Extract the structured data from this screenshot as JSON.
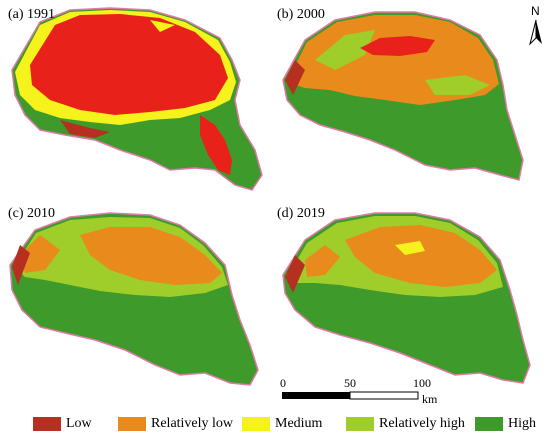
{
  "panels": [
    {
      "id": "a",
      "label": "(a) 1991"
    },
    {
      "id": "b",
      "label": "(b) 2000"
    },
    {
      "id": "c",
      "label": "(c) 2010"
    },
    {
      "id": "d",
      "label": "(d) 2019"
    }
  ],
  "north_arrow": {
    "letter": "N"
  },
  "scale_bar": {
    "ticks": [
      "0",
      "50",
      "100"
    ],
    "unit": "km"
  },
  "legend": [
    {
      "label": "Low",
      "color": "#b5301e"
    },
    {
      "label": "Relatively low",
      "color": "#e98a1c"
    },
    {
      "label": "Medium",
      "color": "#f6f21c"
    },
    {
      "label": "Relatively high",
      "color": "#9fcd2a"
    },
    {
      "label": "High",
      "color": "#3f9a2c"
    }
  ],
  "colors": {
    "red_zone": "#e8211b",
    "boundary": "#e07aa8"
  }
}
